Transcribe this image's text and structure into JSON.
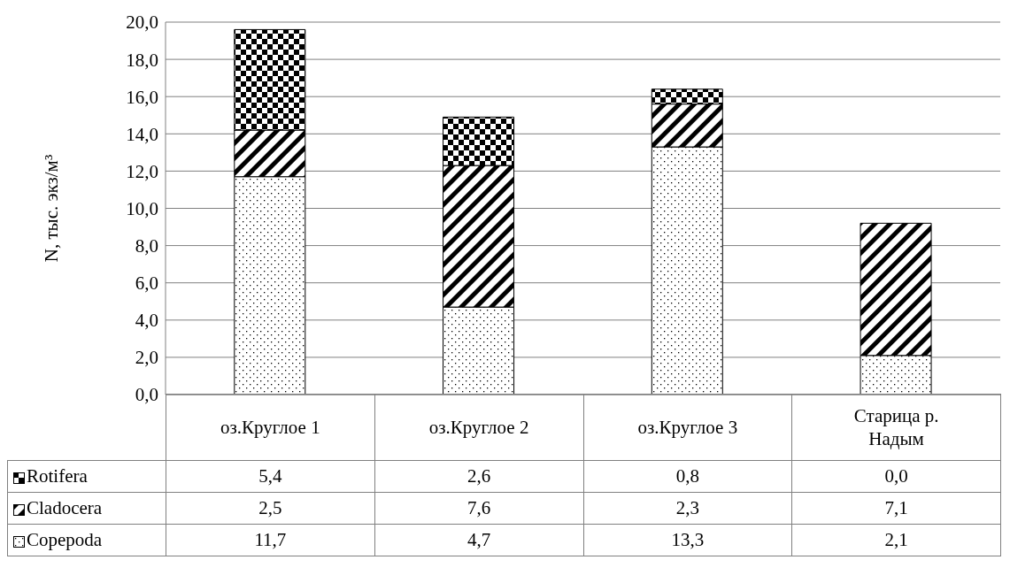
{
  "chart_data": {
    "type": "bar",
    "stacked": true,
    "ylabel": "N,  тыс. экз/м³",
    "categories": [
      "оз.Круглое 1",
      "оз.Круглое 2",
      "оз.Круглое 3",
      "Старица р. Надым"
    ],
    "series": [
      {
        "name": "Copepoda",
        "color": "#000000",
        "values": [
          11.7,
          4.7,
          13.3,
          2.1
        ],
        "value_labels": [
          "11,7",
          "4,7",
          "13,3",
          "2,1"
        ]
      },
      {
        "name": "Cladocera",
        "color": "#000000",
        "values": [
          2.5,
          7.6,
          2.3,
          7.1
        ],
        "value_labels": [
          "2,5",
          "7,6",
          "2,3",
          "7,1"
        ]
      },
      {
        "name": "Rotifera",
        "color": "#000000",
        "values": [
          5.4,
          2.6,
          0.8,
          0.0
        ],
        "value_labels": [
          "5,4",
          "2,6",
          "0,8",
          "0,0"
        ]
      }
    ],
    "ylim": [
      0,
      20
    ],
    "yticks": [
      {
        "value": 0,
        "label": "0,0"
      },
      {
        "value": 2,
        "label": "2,0"
      },
      {
        "value": 4,
        "label": "4,0"
      },
      {
        "value": 6,
        "label": "6,0"
      },
      {
        "value": 8,
        "label": "8,0"
      },
      {
        "value": 10,
        "label": "10,0"
      },
      {
        "value": 12,
        "label": "12,0"
      },
      {
        "value": 14,
        "label": "14,0"
      },
      {
        "value": 16,
        "label": "16,0"
      },
      {
        "value": 18,
        "label": "18,0"
      },
      {
        "value": 20,
        "label": "20,0"
      }
    ],
    "grid": "y",
    "legend": "bottom left"
  }
}
